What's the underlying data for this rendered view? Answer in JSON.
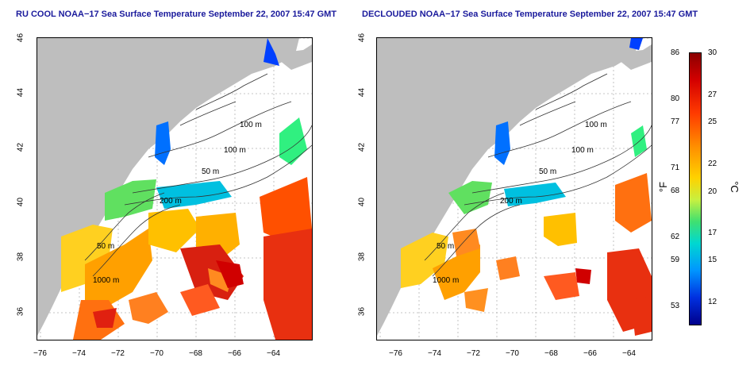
{
  "titles": {
    "left": "RU COOL NOAA−17 Sea Surface Temperature September 22, 2007 15:47 GMT",
    "right": "DECLOUDED NOAA−17 Sea Surface Temperature September 22, 2007 15:47 GMT"
  },
  "map": {
    "x_ticks": [
      "−76",
      "−74",
      "−72",
      "−70",
      "−68",
      "−66",
      "−64"
    ],
    "y_ticks": [
      "46",
      "44",
      "42",
      "40",
      "38",
      "36"
    ],
    "contour_labels": {
      "left": [
        "100 m",
        "100 m",
        "50 m",
        "200 m",
        "50 m",
        "1000 m"
      ],
      "right": [
        "100 m",
        "100 m",
        "50 m",
        "200 m",
        "50 m",
        "1000 m"
      ]
    },
    "colors": {
      "land": "#bebebe",
      "no_data": "#ffffff",
      "grid": "#b4b4b4"
    }
  },
  "colorbar": {
    "fahrenheit_label": "°F",
    "celsius_label": "°C",
    "fahrenheit_ticks": [
      "86",
      "80",
      "77",
      "71",
      "68",
      "62",
      "59",
      "53"
    ],
    "celsius_ticks": [
      "30",
      "27",
      "25",
      "22",
      "20",
      "17",
      "15",
      "12"
    ]
  }
}
